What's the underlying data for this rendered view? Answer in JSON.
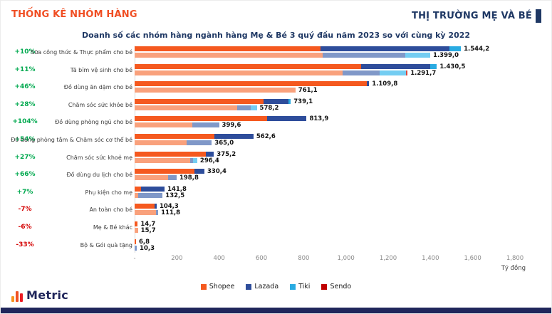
{
  "header": {
    "left_title": "THỐNG KÊ NHÓM HÀNG",
    "right_title": "THỊ TRƯỜNG MẸ VÀ BÉ"
  },
  "footer": {
    "logo_text": "Metric"
  },
  "colors": {
    "header_orange": "#F04E23",
    "navy": "#1F3864",
    "brand_navy": "#20265B",
    "positive": "#00A94F",
    "negative": "#D40000",
    "series_2023": {
      "shopee": "#F5591F",
      "lazada": "#2E4D9B",
      "tiki": "#29ABE2",
      "sendo": "#C00000"
    },
    "series_2022": {
      "shopee": "#F9A17C",
      "lazada": "#8098C8",
      "tiki": "#74CDF2",
      "sendo": "#D8473C"
    },
    "logo_bars": [
      "#F7941E",
      "#F05123",
      "#EC1C24"
    ]
  },
  "chart_data": {
    "type": "bar",
    "orientation": "horizontal",
    "title": "Doanh số các nhóm hàng ngành hàng Mẹ & Bé 3 quý đầu năm 2023 so với cùng kỳ 2022",
    "unit_label": "Tỷ đồng",
    "xlim": [
      0,
      1800
    ],
    "x_ticks": [
      "-",
      "200",
      "400",
      "600",
      "800",
      "1,000",
      "1,200",
      "1,400",
      "1,600",
      "1,800"
    ],
    "legend": [
      {
        "name": "Shopee",
        "color": "#F5591F"
      },
      {
        "name": "Lazada",
        "color": "#2E4D9B"
      },
      {
        "name": "Tiki",
        "color": "#29ABE2"
      },
      {
        "name": "Sendo",
        "color": "#C00000"
      }
    ],
    "series_years": [
      "2023",
      "2022"
    ],
    "categories": [
      {
        "label": "Sữa công thức & Thực phẩm cho bé",
        "change": "+10%",
        "y2023": {
          "total": 1544.2,
          "label": "1.544,2",
          "segments": {
            "shopee": 0.57,
            "lazada": 0.395,
            "tiki": 0.035,
            "sendo": 0
          }
        },
        "y2022": {
          "total": 1399.0,
          "label": "1.399,0",
          "segments": {
            "shopee": 0.635,
            "lazada": 0.28,
            "tiki": 0.085,
            "sendo": 0
          }
        }
      },
      {
        "label": "Tã bỉm vệ sinh cho bé",
        "change": "+11%",
        "y2023": {
          "total": 1430.5,
          "label": "1.430,5",
          "segments": {
            "shopee": 0.75,
            "lazada": 0.228,
            "tiki": 0.022,
            "sendo": 0
          }
        },
        "y2022": {
          "total": 1291.7,
          "label": "1.291,7",
          "segments": {
            "shopee": 0.763,
            "lazada": 0.135,
            "tiki": 0.096,
            "sendo": 0.006
          }
        }
      },
      {
        "label": "Đồ dùng ăn dặm cho bé",
        "change": "+46%",
        "y2023": {
          "total": 1109.8,
          "label": "1.109,8",
          "segments": {
            "shopee": 0.99,
            "lazada": 0.01,
            "tiki": 0,
            "sendo": 0
          }
        },
        "y2022": {
          "total": 761.1,
          "label": "761,1",
          "segments": {
            "shopee": 1,
            "lazada": 0,
            "tiki": 0,
            "sendo": 0
          }
        }
      },
      {
        "label": "Chăm sóc sức khỏe bé",
        "change": "+28%",
        "y2023": {
          "total": 739.1,
          "label": "739,1",
          "segments": {
            "shopee": 0.824,
            "lazada": 0.16,
            "tiki": 0.016,
            "sendo": 0
          }
        },
        "y2022": {
          "total": 578.2,
          "label": "578,2",
          "segments": {
            "shopee": 0.84,
            "lazada": 0.11,
            "tiki": 0.05,
            "sendo": 0
          }
        }
      },
      {
        "label": "Đồ dùng phòng ngủ cho bé",
        "change": "+104%",
        "y2023": {
          "total": 813.9,
          "label": "813,9",
          "segments": {
            "shopee": 0.77,
            "lazada": 0.23,
            "tiki": 0,
            "sendo": 0
          }
        },
        "y2022": {
          "total": 399.6,
          "label": "399,6",
          "segments": {
            "shopee": 0.68,
            "lazada": 0.32,
            "tiki": 0,
            "sendo": 0
          }
        }
      },
      {
        "label": "Đồ dùng phòng tắm & Chăm sóc cơ thể bé",
        "change": "+54%",
        "y2023": {
          "total": 562.6,
          "label": "562,6",
          "segments": {
            "shopee": 0.67,
            "lazada": 0.33,
            "tiki": 0,
            "sendo": 0
          }
        },
        "y2022": {
          "total": 365.0,
          "label": "365,0",
          "segments": {
            "shopee": 0.67,
            "lazada": 0.33,
            "tiki": 0,
            "sendo": 0
          }
        }
      },
      {
        "label": "Chăm sóc sức khoẻ mẹ",
        "change": "+27%",
        "y2023": {
          "total": 375.2,
          "label": "375,2",
          "segments": {
            "shopee": 0.9,
            "lazada": 0.1,
            "tiki": 0,
            "sendo": 0
          }
        },
        "y2022": {
          "total": 296.4,
          "label": "296,4",
          "segments": {
            "shopee": 0.885,
            "lazada": 0.045,
            "tiki": 0.07,
            "sendo": 0
          }
        }
      },
      {
        "label": "Đồ dùng du lịch cho bé",
        "change": "+66%",
        "y2023": {
          "total": 330.4,
          "label": "330,4",
          "segments": {
            "shopee": 0.86,
            "lazada": 0.14,
            "tiki": 0,
            "sendo": 0
          }
        },
        "y2022": {
          "total": 198.8,
          "label": "198,8",
          "segments": {
            "shopee": 0.79,
            "lazada": 0.21,
            "tiki": 0,
            "sendo": 0
          }
        }
      },
      {
        "label": "Phụ kiện cho mẹ",
        "change": "+7%",
        "y2023": {
          "total": 141.8,
          "label": "141,8",
          "segments": {
            "shopee": 0.225,
            "lazada": 0.775,
            "tiki": 0,
            "sendo": 0
          }
        },
        "y2022": {
          "total": 132.5,
          "label": "132,5",
          "segments": {
            "shopee": 0.12,
            "lazada": 0.88,
            "tiki": 0,
            "sendo": 0
          }
        }
      },
      {
        "label": "An toàn cho bé",
        "change": "-7%",
        "y2023": {
          "total": 104.3,
          "label": "104,3",
          "segments": {
            "shopee": 0.91,
            "lazada": 0.09,
            "tiki": 0,
            "sendo": 0
          }
        },
        "y2022": {
          "total": 111.8,
          "label": "111,8",
          "segments": {
            "shopee": 0.89,
            "lazada": 0.11,
            "tiki": 0,
            "sendo": 0
          }
        }
      },
      {
        "label": "Mẹ & Bé khác",
        "change": "-6%",
        "y2023": {
          "total": 14.7,
          "label": "14,7",
          "segments": {
            "shopee": 1,
            "lazada": 0,
            "tiki": 0,
            "sendo": 0
          }
        },
        "y2022": {
          "total": 15.7,
          "label": "15,7",
          "segments": {
            "shopee": 1,
            "lazada": 0,
            "tiki": 0,
            "sendo": 0
          }
        }
      },
      {
        "label": "Bộ & Gói quà tặng",
        "change": "-33%",
        "y2023": {
          "total": 6.8,
          "label": "6,8",
          "segments": {
            "shopee": 1,
            "lazada": 0,
            "tiki": 0,
            "sendo": 0
          }
        },
        "y2022": {
          "total": 10.3,
          "label": "10,3",
          "segments": {
            "shopee": 0,
            "lazada": 1,
            "tiki": 0,
            "sendo": 0
          }
        }
      }
    ]
  }
}
